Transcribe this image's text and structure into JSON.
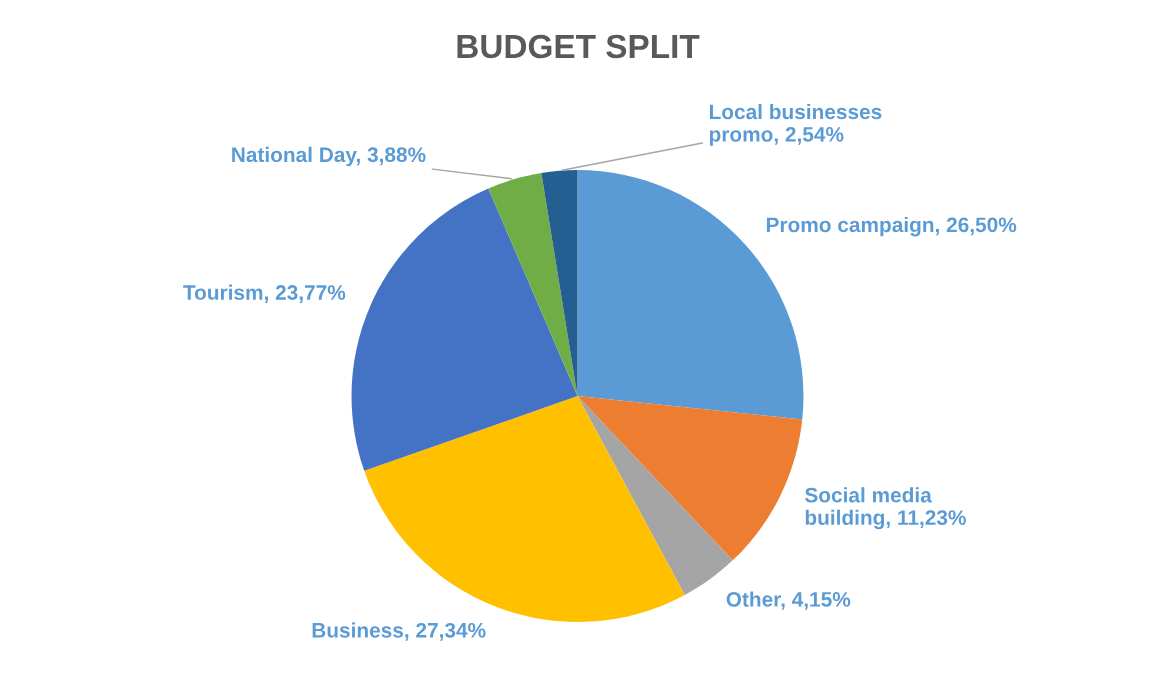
{
  "chart_data": {
    "type": "pie",
    "title": "BUDGET SPLIT",
    "categories": [
      "Promo campaign",
      "Social media building",
      "Other",
      "Business",
      "Tourism",
      "National Day",
      "Local businesses promo"
    ],
    "values": [
      26.5,
      11.23,
      4.15,
      27.34,
      23.77,
      3.88,
      2.54
    ],
    "value_labels": [
      "26,50%",
      "11,23%",
      "4,15%",
      "27,34%",
      "23,77%",
      "3,88%",
      "2,54%"
    ],
    "colors": [
      "#5b9bd5",
      "#ed7d31",
      "#a5a5a5",
      "#ffc000",
      "#4472c4",
      "#70ad47",
      "#255e91"
    ],
    "legend": false
  }
}
